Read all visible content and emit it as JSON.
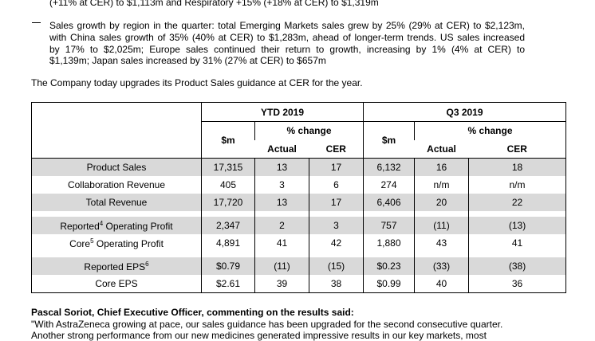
{
  "doc": {
    "top_line": "(+11% at CER) to $1,113m and Respiratory +15% (+18% at CER) to $1,319m",
    "bullet_dash": "—",
    "bullet_lines": [
      "Sales growth by region in the quarter: total Emerging Markets sales grew by 25% (29% at CER) to $2,123m,",
      "with China sales growth of 35% (40% at CER) to $1,283m, ahead of longer-term trends. US sales increased",
      "by 17% to $2,025m; Europe sales continued their return to growth, increasing by 1% (4% at CER) to",
      "$1,139m; Japan sales increased by 31% (27% at CER) to $657m"
    ],
    "guidance": "The Company today upgrades its Product Sales guidance at CER for the year.",
    "quote_heading": "Pascal Soriot, Chief Executive Officer, commenting on the results said:",
    "quote_line1": "\"With AstraZeneca growing at pace, our sales guidance has been upgraded for the second consecutive quarter.",
    "quote_line2": "Another strong performance from our new medicines generated impressive results in our key markets, most"
  },
  "table": {
    "ytd_label": "YTD 2019",
    "q3_label": "Q3 2019",
    "sm": "$m",
    "pct_change": "% change",
    "actual": "Actual",
    "cer": "CER",
    "rows": [
      {
        "label": "Product Sales",
        "sup": "",
        "label_after": "",
        "ytd_m": "17,315",
        "ytd_act": "13",
        "ytd_cer": "17",
        "q3_m": "6,132",
        "q3_act": "16",
        "q3_cer": "18"
      },
      {
        "label": "Collaboration Revenue",
        "sup": "",
        "label_after": "",
        "ytd_m": "405",
        "ytd_act": "3",
        "ytd_cer": "6",
        "q3_m": "274",
        "q3_act": "n/m",
        "q3_cer": "n/m"
      },
      {
        "label": "Total Revenue",
        "sup": "",
        "label_after": "",
        "ytd_m": "17,720",
        "ytd_act": "13",
        "ytd_cer": "17",
        "q3_m": "6,406",
        "q3_act": "20",
        "q3_cer": "22"
      },
      {
        "label": "Reported",
        "sup": "4",
        "label_after": " Operating Profit",
        "ytd_m": "2,347",
        "ytd_act": "2",
        "ytd_cer": "3",
        "q3_m": "757",
        "q3_act": "(11)",
        "q3_cer": "(13)"
      },
      {
        "label": "Core",
        "sup": "5",
        "label_after": " Operating Profit",
        "ytd_m": "4,891",
        "ytd_act": "41",
        "ytd_cer": "42",
        "q3_m": "1,880",
        "q3_act": "43",
        "q3_cer": "41"
      },
      {
        "label": "Reported EPS",
        "sup": "6",
        "label_after": "",
        "ytd_m": "$0.79",
        "ytd_act": "(11)",
        "ytd_cer": "(15)",
        "q3_m": "$0.23",
        "q3_act": "(33)",
        "q3_cer": "(38)"
      },
      {
        "label": "Core EPS",
        "sup": "",
        "label_after": "",
        "ytd_m": "$2.61",
        "ytd_act": "39",
        "ytd_cer": "38",
        "q3_m": "$0.99",
        "q3_act": "40",
        "q3_cer": "36"
      }
    ]
  }
}
